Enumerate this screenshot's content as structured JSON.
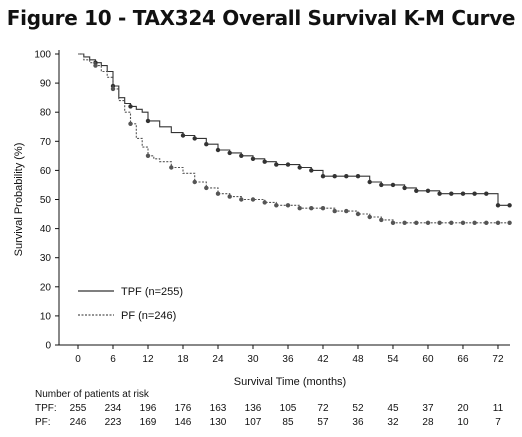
{
  "chart_data": {
    "type": "line",
    "title": "Figure 10 - TAX324 Overall Survival K-M Curve",
    "xlabel": "Survival Time (months)",
    "ylabel": "Survival Probability (%)",
    "xlim": [
      0,
      74
    ],
    "ylim": [
      0,
      100
    ],
    "xticks": [
      0,
      6,
      12,
      18,
      24,
      30,
      36,
      42,
      48,
      54,
      60,
      66,
      72
    ],
    "yticks": [
      0,
      10,
      20,
      30,
      40,
      50,
      60,
      70,
      80,
      90,
      100
    ],
    "grid": false,
    "legend_position": "bottom-left",
    "series": [
      {
        "name": "TPF (n=255)",
        "style": "solid",
        "color": "#333333",
        "x": [
          0,
          1,
          2,
          3,
          4,
          5,
          6,
          7,
          8,
          9,
          10,
          11,
          12,
          14,
          16,
          18,
          20,
          22,
          24,
          26,
          28,
          30,
          32,
          34,
          36,
          38,
          40,
          42,
          44,
          46,
          48,
          50,
          52,
          54,
          56,
          58,
          60,
          62,
          64,
          66,
          68,
          70,
          72,
          74
        ],
        "y": [
          100,
          99,
          98,
          97,
          96,
          94,
          89,
          85,
          83,
          82,
          81,
          80,
          77,
          75,
          73,
          72,
          71,
          69,
          67,
          66,
          65,
          64,
          63,
          62,
          62,
          61,
          60,
          58,
          58,
          58,
          58,
          56,
          55,
          55,
          54,
          53,
          53,
          52,
          52,
          52,
          52,
          52,
          48,
          48
        ]
      },
      {
        "name": "PF  (n=246)",
        "style": "dashed",
        "color": "#555555",
        "x": [
          0,
          1,
          2,
          3,
          4,
          5,
          6,
          7,
          8,
          9,
          10,
          11,
          12,
          13,
          14,
          16,
          18,
          20,
          22,
          24,
          26,
          28,
          30,
          32,
          34,
          36,
          38,
          40,
          42,
          44,
          46,
          48,
          50,
          52,
          54,
          56,
          58,
          60,
          62,
          64,
          66,
          68,
          70,
          72,
          74
        ],
        "y": [
          100,
          98,
          97,
          96,
          94,
          92,
          88,
          84,
          80,
          76,
          71,
          68,
          65,
          64,
          63,
          61,
          59,
          56,
          54,
          52,
          51,
          50,
          50,
          49,
          48,
          48,
          47,
          47,
          47,
          46,
          46,
          45,
          44,
          43,
          42,
          42,
          42,
          42,
          42,
          42,
          42,
          42,
          42,
          42,
          42
        ]
      }
    ],
    "risk_table": {
      "title": "Number of patients at risk",
      "times": [
        0,
        6,
        12,
        18,
        24,
        30,
        36,
        42,
        48,
        54,
        60,
        66,
        72
      ],
      "rows": [
        {
          "label": "TPF:",
          "values": [
            "255",
            "234",
            "196",
            "176",
            "163",
            "136",
            "105",
            "72",
            "52",
            "45",
            "37",
            "20",
            "11"
          ]
        },
        {
          "label": "PF:",
          "values": [
            "246",
            "223",
            "169",
            "146",
            "130",
            "107",
            "85",
            "57",
            "36",
            "32",
            "28",
            "10",
            "7"
          ]
        }
      ]
    }
  }
}
